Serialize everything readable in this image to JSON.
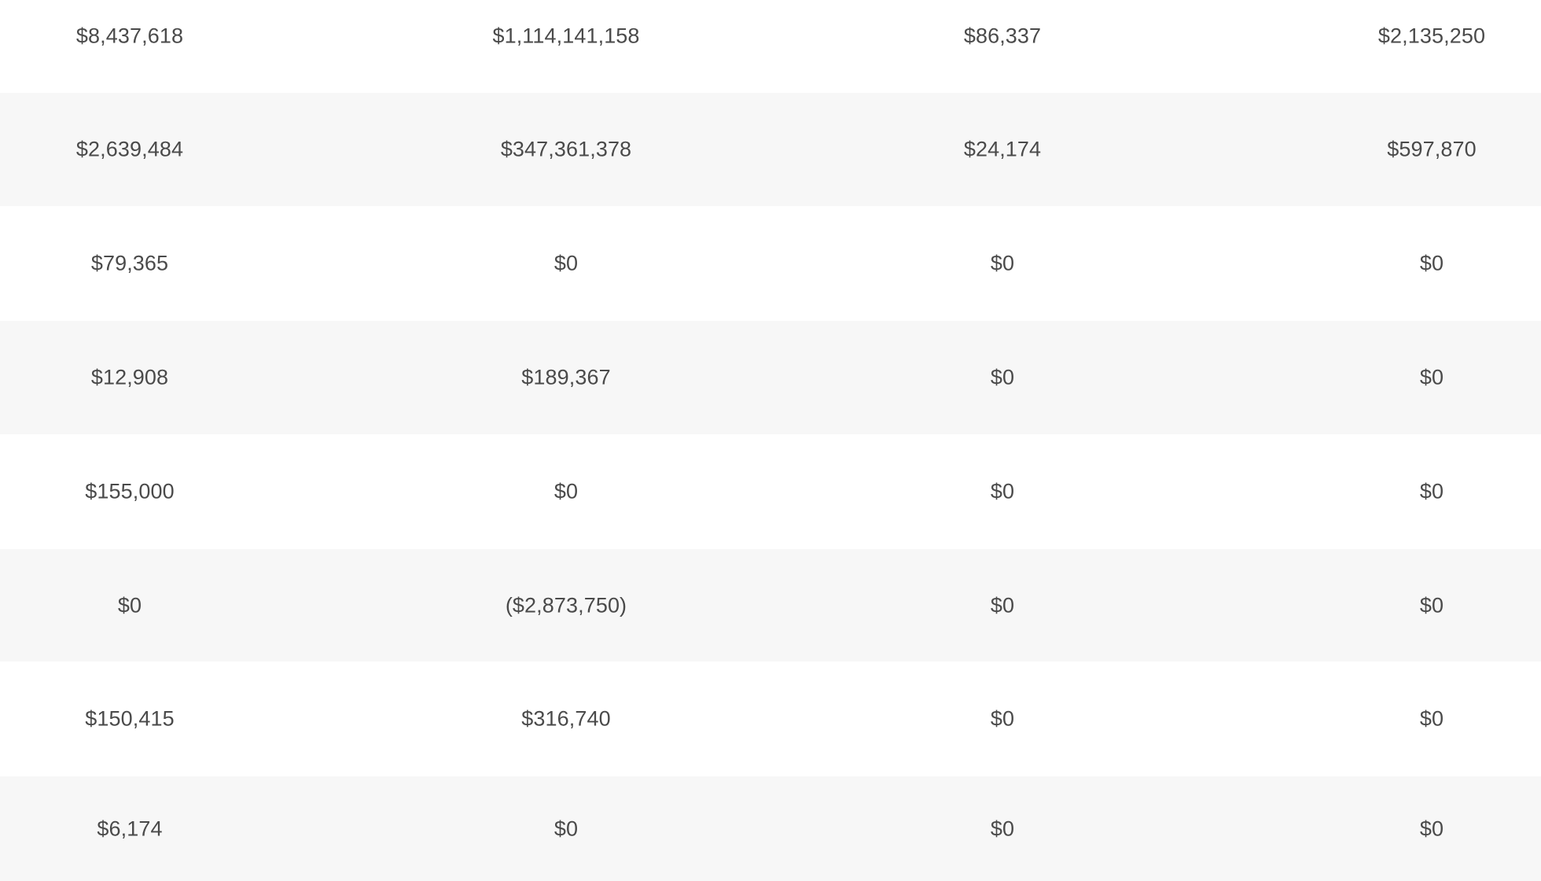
{
  "table": {
    "rows": [
      [
        "$8,437,618",
        "$1,114,141,158",
        "$86,337",
        "$2,135,250"
      ],
      [
        "$2,639,484",
        "$347,361,378",
        "$24,174",
        "$597,870"
      ],
      [
        "$79,365",
        "$0",
        "$0",
        "$0"
      ],
      [
        "$12,908",
        "$189,367",
        "$0",
        "$0"
      ],
      [
        "$155,000",
        "$0",
        "$0",
        "$0"
      ],
      [
        "$0",
        "($2,873,750)",
        "$0",
        "$0"
      ],
      [
        "$150,415",
        "$316,740",
        "$0",
        "$0"
      ],
      [
        "$6,174",
        "$0",
        "$0",
        "$0"
      ]
    ]
  },
  "colors": {
    "row_alt": "#f7f7f7",
    "row": "#ffffff",
    "text": "#4a4a4a"
  }
}
